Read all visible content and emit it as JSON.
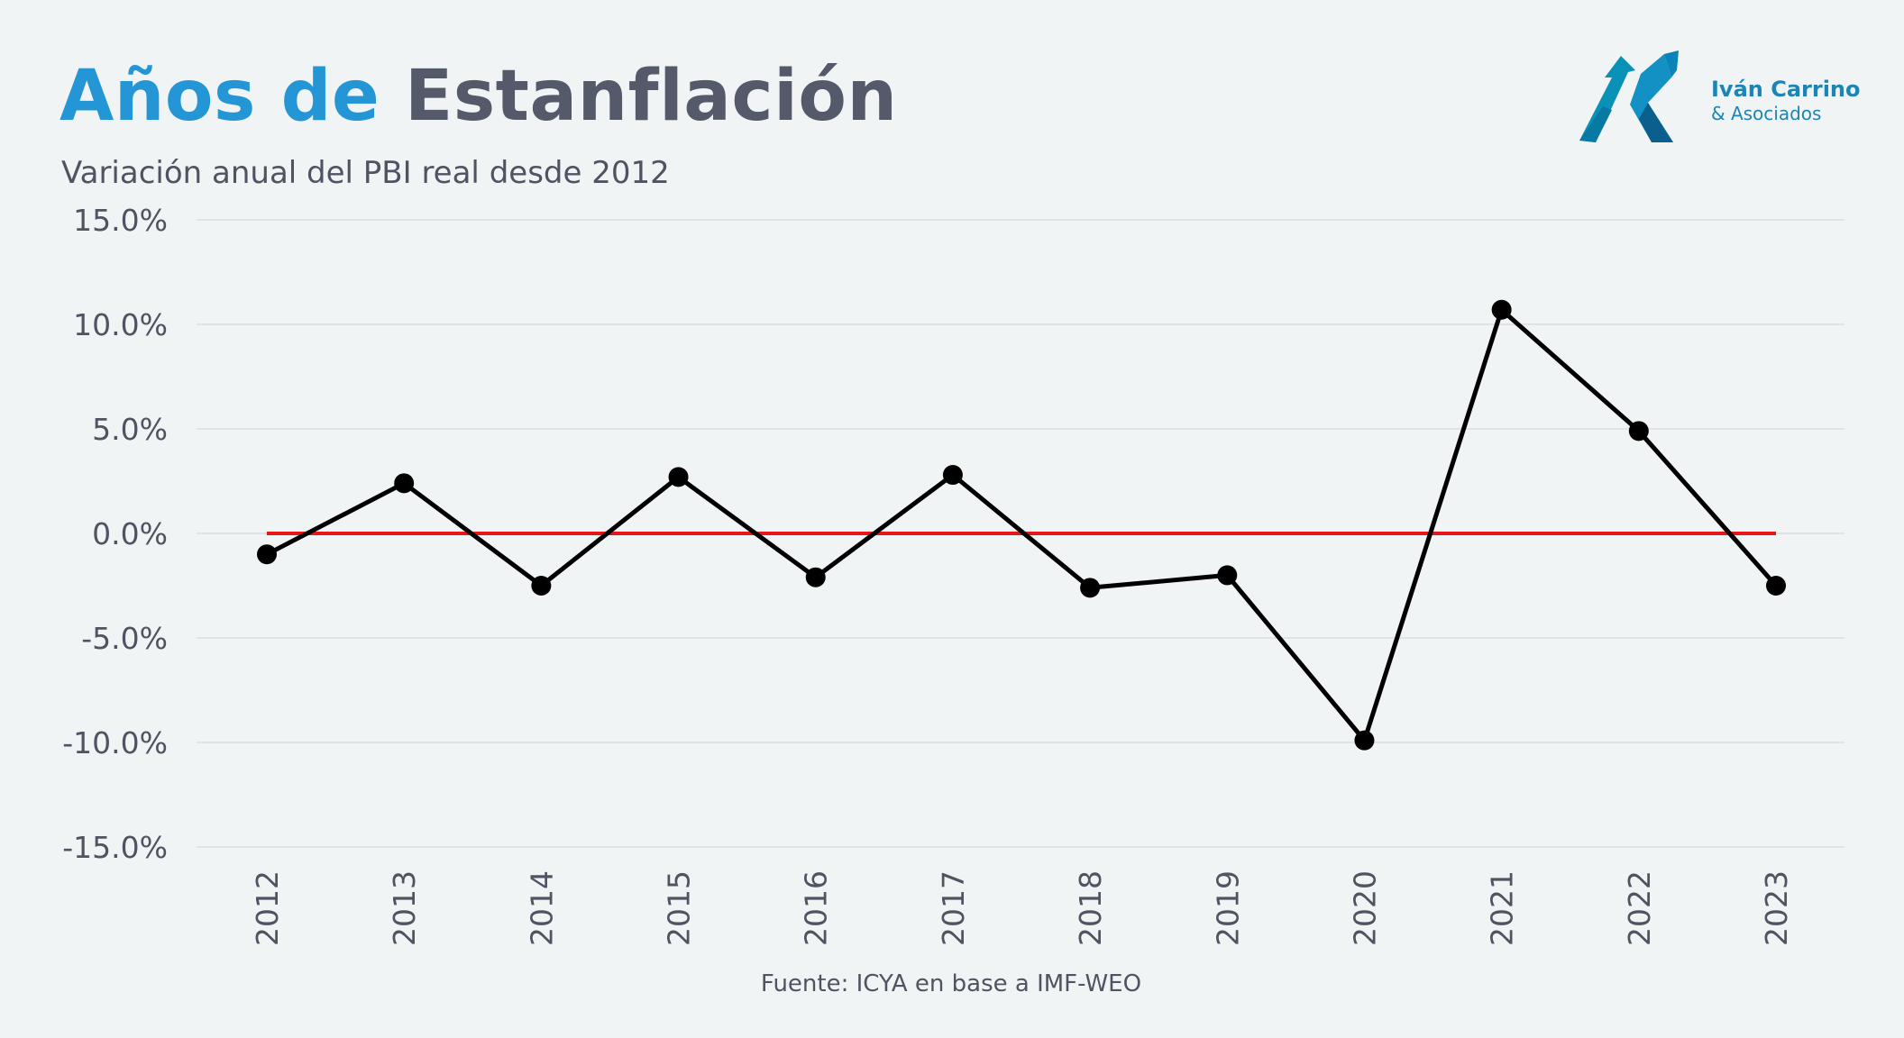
{
  "header": {
    "title_part1": "Años de",
    "title_part2": "Estanflación",
    "subtitle": "Variación anual del PBI real desde 2012"
  },
  "logo": {
    "name": "Iván Carrino",
    "sub": "& Asociados",
    "icon": "ica-arrow-logo-icon"
  },
  "footer": {
    "source": "Fuente: ICYA en base a IMF-WEO"
  },
  "colors": {
    "title_accent": "#2496d6",
    "title_main": "#545a6a",
    "series_line": "#000000",
    "zero_line": "#e8161b",
    "grid": "#dcdfe2",
    "tick_text": "#4e5462",
    "logo": "#1d84b6",
    "background": "#f1f4f5"
  },
  "chart_data": {
    "type": "line",
    "title": "Años de Estanflación",
    "subtitle": "Variación anual del PBI real desde 2012",
    "xlabel": "",
    "ylabel": "",
    "x": [
      "2012",
      "2013",
      "2014",
      "2015",
      "2016",
      "2017",
      "2018",
      "2019",
      "2020",
      "2021",
      "2022",
      "2023"
    ],
    "series": [
      {
        "values": [
          -1.0,
          2.4,
          -2.5,
          2.7,
          -2.1,
          2.8,
          -2.6,
          -2.0,
          -9.9,
          10.7,
          4.9,
          -2.5
        ]
      }
    ],
    "reference_line": {
      "y": 0.0
    },
    "ylim": [
      -15,
      15
    ],
    "yticks": [
      15,
      10,
      5,
      0,
      -5,
      -10,
      -15
    ],
    "ytick_labels": [
      "15.0%",
      "10.0%",
      "5.0%",
      "0.0%",
      "-5.0%",
      "-10.0%",
      "-15.0%"
    ],
    "grid": true,
    "legend": "none"
  }
}
